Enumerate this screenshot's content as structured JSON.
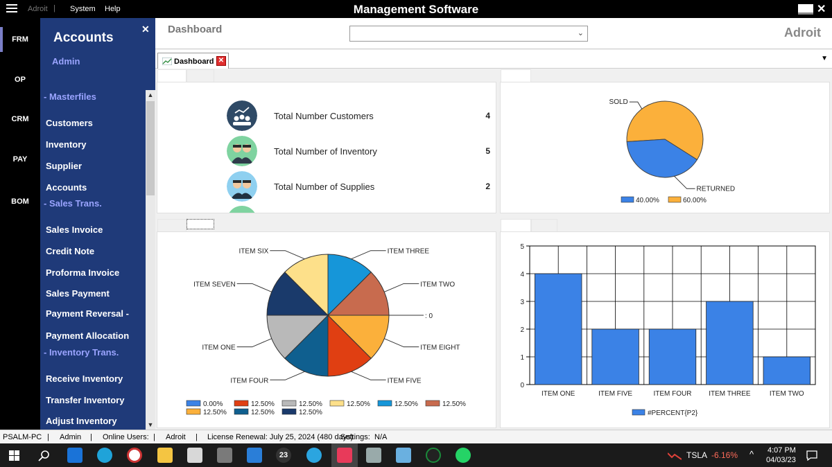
{
  "titlebar": {
    "brand": "Adroit",
    "menu": [
      "System",
      "Help"
    ],
    "title": "Management Software"
  },
  "rail": [
    "FRM",
    "OP",
    "CRM",
    "PAY",
    "BOM"
  ],
  "panel": {
    "title": "Accounts",
    "user": "Admin",
    "groups": {
      "masterfiles": "- Masterfiles",
      "sales": "- Sales Trans.",
      "inventory": "- Inventory Trans."
    },
    "masterfiles": [
      "Customers",
      "Inventory",
      "Supplier",
      "Accounts"
    ],
    "sales": [
      "Sales Invoice",
      "Credit Note",
      "Proforma Invoice",
      "Sales Payment",
      "Payment Reversal -",
      "Payment Allocation"
    ],
    "inventory": [
      "Receive Inventory",
      "Transfer Inventory",
      "Adjust Inventory"
    ]
  },
  "header": {
    "page_title": "Dashboard",
    "select_value": "",
    "logo": "Adroit"
  },
  "tab": {
    "label": "Dashboard"
  },
  "stats": [
    {
      "label": "Total Number Customers",
      "value": "4",
      "icon": "customers-icon",
      "color": "#2f4a66"
    },
    {
      "label": "Total Number of Inventory",
      "value": "5",
      "icon": "inventory-people-icon",
      "color": "#7fd3a0"
    },
    {
      "label": "Total Number of Supplies",
      "value": "2",
      "icon": "supplies-people-icon",
      "color": "#8fd0f0"
    }
  ],
  "chart_data": [
    {
      "type": "pie",
      "labels": [
        "SOLD",
        "RETURNED"
      ],
      "values": [
        60,
        40
      ],
      "colors": [
        "#fbb03b",
        "#3b82e6"
      ],
      "legend": [
        {
          "label": "40.00%",
          "color": "#3b82e6"
        },
        {
          "label": "60.00%",
          "color": "#fbb03b"
        }
      ],
      "legend_position": "bottom"
    },
    {
      "type": "pie",
      "slices": [
        {
          "label": "ITEM THREE",
          "value": 12.5,
          "color": "#1696d9"
        },
        {
          "label": "ITEM TWO",
          "value": 12.5,
          "color": "#c86b4e"
        },
        {
          "label": ": 0",
          "value": 0,
          "color": "#e03f12"
        },
        {
          "label": "ITEM EIGHT",
          "value": 12.5,
          "color": "#fbb03b"
        },
        {
          "label": "ITEM FIVE",
          "value": 12.5,
          "color": "#e03f12"
        },
        {
          "label": "ITEM FOUR",
          "value": 12.5,
          "color": "#0f5f8f"
        },
        {
          "label": "ITEM ONE",
          "value": 12.5,
          "color": "#b9b9b9"
        },
        {
          "label": "ITEM SEVEN",
          "value": 12.5,
          "color": "#1a3a6b"
        },
        {
          "label": "ITEM SIX",
          "value": 12.5,
          "color": "#fde08a"
        }
      ],
      "legend": [
        {
          "label": "0.00%",
          "color": "#3b82e6"
        },
        {
          "label": "12.50%",
          "color": "#e03f12"
        },
        {
          "label": "12.50%",
          "color": "#b9b9b9"
        },
        {
          "label": "12.50%",
          "color": "#fde08a"
        },
        {
          "label": "12.50%",
          "color": "#1696d9"
        },
        {
          "label": "12.50%",
          "color": "#c86b4e"
        },
        {
          "label": "12.50%",
          "color": "#fbb03b"
        },
        {
          "label": "12.50%",
          "color": "#0f5f8f"
        },
        {
          "label": "12.50%",
          "color": "#1a3a6b"
        }
      ],
      "legend_position": "bottom"
    },
    {
      "type": "bar",
      "categories": [
        "ITEM ONE",
        "ITEM FIVE",
        "ITEM FOUR",
        "ITEM THREE",
        "ITEM TWO"
      ],
      "series": [
        {
          "name": "#PERCENT{P2}",
          "values": [
            4,
            2,
            2,
            3,
            1
          ],
          "color": "#3b82e6"
        }
      ],
      "ylim": [
        0,
        5
      ],
      "yticks": [
        0,
        1,
        2,
        3,
        4,
        5
      ],
      "grid": true,
      "legend_position": "bottom"
    }
  ],
  "statusbar": {
    "machine": "PSALM-PC",
    "user": "Admin",
    "online": "Online Users:",
    "company": "Adroit",
    "license": "License Renewal: July 25, 2024 (480 days)",
    "settings": "Settings:",
    "settings_value": "N/A"
  },
  "taskbar": {
    "ticker": "TSLA",
    "change": "-6.16%",
    "time": "4:07 PM",
    "date": "04/03/23",
    "badge_count": "23"
  }
}
